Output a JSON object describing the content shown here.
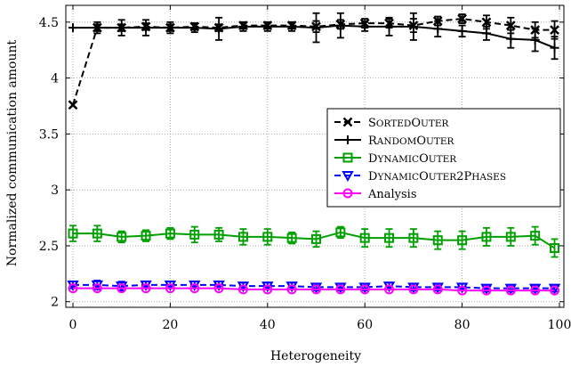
{
  "chart_data": {
    "type": "line",
    "xlabel": "Heterogeneity",
    "ylabel": "Normalized communication amount",
    "xlim": [
      0,
      100
    ],
    "ylim": [
      1.95,
      4.65
    ],
    "x_ticks": [
      0,
      20,
      40,
      60,
      80,
      100
    ],
    "y_ticks": [
      2,
      2.5,
      3,
      3.5,
      4,
      4.5
    ],
    "x_tick_labels": [
      "0",
      "20",
      "40",
      "60",
      "80",
      "100"
    ],
    "y_tick_labels": [
      "2",
      "2.5",
      "3",
      "3.5",
      "4",
      "4.5"
    ],
    "grid": "dotted",
    "legend_position": "right",
    "x": [
      0,
      5,
      10,
      15,
      20,
      25,
      30,
      35,
      40,
      45,
      50,
      55,
      60,
      65,
      70,
      75,
      80,
      85,
      90,
      95,
      99
    ],
    "series": [
      {
        "name": "SortedOuter",
        "legend_parts": [
          [
            "S",
            "ORTED"
          ],
          [
            "O",
            "UTER"
          ]
        ],
        "color": "#000000",
        "dash": "dashed",
        "marker": "x",
        "values": [
          3.76,
          4.45,
          4.45,
          4.46,
          4.45,
          4.46,
          4.45,
          4.47,
          4.47,
          4.47,
          4.46,
          4.48,
          4.49,
          4.49,
          4.47,
          4.51,
          4.53,
          4.5,
          4.47,
          4.43,
          4.43
        ],
        "errors": [
          0,
          0.03,
          0.03,
          0.03,
          0.03,
          0.03,
          0.03,
          0.03,
          0.03,
          0.03,
          0.05,
          0.04,
          0.04,
          0.04,
          0.06,
          0.04,
          0.04,
          0.06,
          0.07,
          0.07,
          0.08
        ]
      },
      {
        "name": "RandomOuter",
        "legend_parts": [
          [
            "R",
            "ANDOM"
          ],
          [
            "O",
            "UTER"
          ]
        ],
        "color": "#000000",
        "dash": "solid",
        "marker": "plus",
        "values": [
          4.45,
          4.45,
          4.45,
          4.45,
          4.45,
          4.45,
          4.44,
          4.46,
          4.46,
          4.46,
          4.45,
          4.47,
          4.46,
          4.46,
          4.46,
          4.44,
          4.42,
          4.4,
          4.35,
          4.34,
          4.27
        ],
        "errors": [
          0,
          0.05,
          0.07,
          0.07,
          0.05,
          0.04,
          0.1,
          0.04,
          0.04,
          0.04,
          0.13,
          0.11,
          0.04,
          0.08,
          0.12,
          0.07,
          0.05,
          0.06,
          0.08,
          0.1,
          0.1
        ]
      },
      {
        "name": "DynamicOuter",
        "legend_parts": [
          [
            "D",
            "YNAMIC"
          ],
          [
            "O",
            "UTER"
          ]
        ],
        "color": "#00a000",
        "dash": "solid",
        "marker": "square",
        "values": [
          2.61,
          2.61,
          2.58,
          2.59,
          2.61,
          2.6,
          2.6,
          2.58,
          2.58,
          2.57,
          2.56,
          2.62,
          2.57,
          2.57,
          2.57,
          2.55,
          2.55,
          2.58,
          2.58,
          2.59,
          2.48
        ],
        "errors": [
          0.07,
          0.07,
          0.05,
          0.05,
          0.05,
          0.07,
          0.06,
          0.07,
          0.07,
          0.05,
          0.07,
          0.05,
          0.08,
          0.08,
          0.08,
          0.08,
          0.08,
          0.08,
          0.08,
          0.08,
          0.08
        ]
      },
      {
        "name": "DynamicOuter2Phases",
        "legend_parts": [
          [
            "D",
            "YNAMIC"
          ],
          [
            "O",
            "UTER"
          ],
          [
            "2P",
            "HASES"
          ]
        ],
        "color": "#0000ff",
        "dash": "dashed",
        "marker": "triangle-down",
        "values": [
          2.15,
          2.15,
          2.14,
          2.15,
          2.15,
          2.15,
          2.15,
          2.14,
          2.14,
          2.14,
          2.13,
          2.13,
          2.13,
          2.14,
          2.13,
          2.13,
          2.13,
          2.12,
          2.12,
          2.12,
          2.12
        ],
        "errors": [
          0.03,
          0.04,
          0.04,
          0.03,
          0.03,
          0.03,
          0.03,
          0.03,
          0.03,
          0.03,
          0.03,
          0.03,
          0.03,
          0.03,
          0.03,
          0.03,
          0.03,
          0.03,
          0.03,
          0.03,
          0.03
        ]
      },
      {
        "name": "Analysis",
        "legend_parts": [
          [
            "Analysis",
            ""
          ]
        ],
        "color": "#ff00ff",
        "dash": "solid",
        "marker": "circle",
        "values": [
          2.12,
          2.12,
          2.12,
          2.12,
          2.12,
          2.12,
          2.12,
          2.11,
          2.11,
          2.11,
          2.11,
          2.11,
          2.11,
          2.11,
          2.11,
          2.11,
          2.1,
          2.1,
          2.1,
          2.1,
          2.1
        ],
        "errors": [
          0,
          0,
          0,
          0,
          0,
          0,
          0,
          0,
          0,
          0,
          0,
          0,
          0,
          0,
          0,
          0,
          0,
          0,
          0,
          0,
          0
        ]
      }
    ]
  }
}
